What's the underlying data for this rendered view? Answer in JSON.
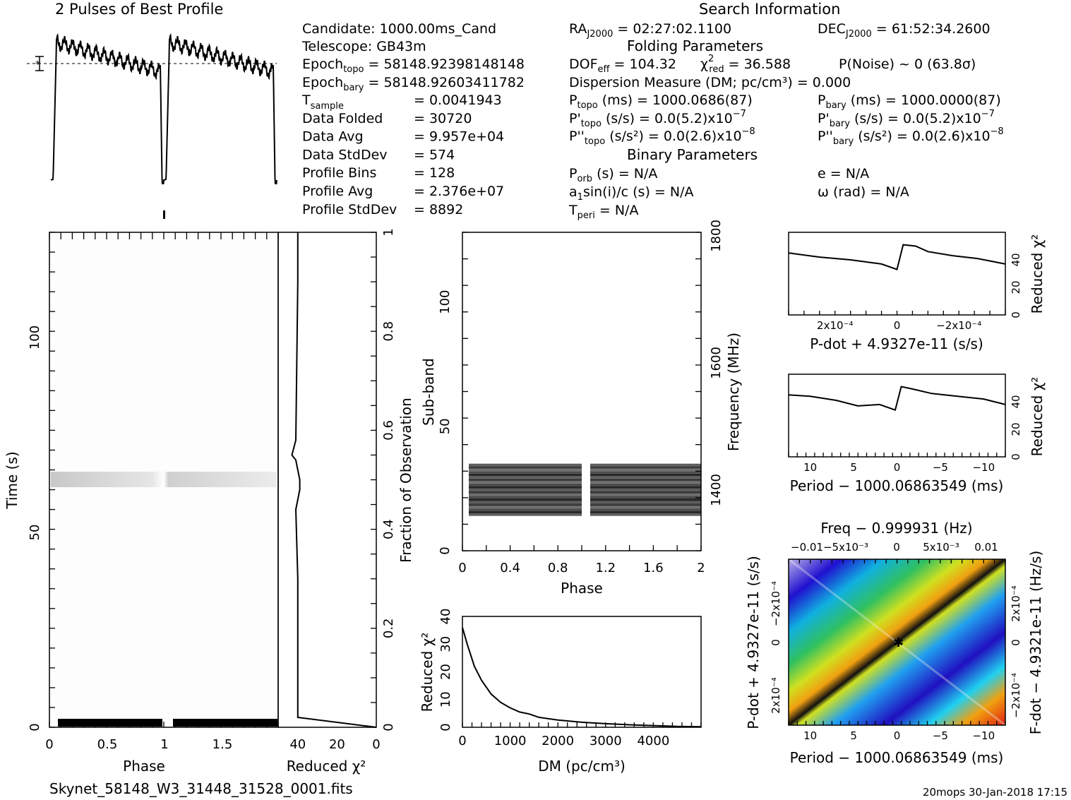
{
  "titles": {
    "profile": "2 Pulses of Best Profile",
    "search": "Search Information",
    "folding": "Folding Parameters",
    "binary": "Binary Parameters"
  },
  "candidate": {
    "candidate": "Candidate:  1000.00ms_Cand",
    "telescope": "Telescope:  GB43m",
    "epoch_topo_label": "Epoch",
    "epoch_topo_sub": "topo",
    "epoch_topo_val": " = 58148.92398148148",
    "epoch_bary_label": "Epoch",
    "epoch_bary_sub": "bary",
    "epoch_bary_val": " = 58148.92603411782",
    "rows": [
      {
        "label": "T",
        "sub": "sample",
        "value": "=   0.0041943"
      },
      {
        "label": "Data Folded",
        "sub": "",
        "value": "=   30720"
      },
      {
        "label": "Data Avg",
        "sub": "",
        "value": "=   9.957e+04"
      },
      {
        "label": "Data StdDev",
        "sub": "",
        "value": "=   574"
      },
      {
        "label": "Profile Bins",
        "sub": "",
        "value": "=   128"
      },
      {
        "label": "Profile Avg",
        "sub": "",
        "value": "=   2.376e+07"
      },
      {
        "label": "Profile StdDev",
        "sub": "",
        "value": "=   8892"
      }
    ]
  },
  "search": {
    "ra": {
      "label": "RA",
      "sub": "J2000",
      "value": " = 02:27:02.1100"
    },
    "dec": {
      "label": "DEC",
      "sub": "J2000",
      "value": " = 61:52:34.2600"
    },
    "dof": {
      "label": "DOF",
      "sub": "eff",
      "value": " = 104.32"
    },
    "chi": {
      "label": "χ",
      "sup": "2",
      "sub": "red",
      "value": " = 36.588"
    },
    "pnoise": "P(Noise) ~ 0    (63.8σ)",
    "dm": "Dispersion Measure (DM; pc/cm³) = 0.000",
    "ptopo": {
      "label": "P",
      "sub": "topo",
      "value": " (ms) =  1000.0686(87)"
    },
    "pbary": {
      "label": "P",
      "sub": "bary",
      "value": " (ms) =  1000.0000(87)"
    },
    "pdtopo": {
      "label": "P'",
      "sub": "topo",
      "value": " (s/s) = 0.0(5.2)x10",
      "exp": "−7"
    },
    "pdbary": {
      "label": "P'",
      "sub": "bary",
      "value": " (s/s) = 0.0(5.2)x10",
      "exp": "−7"
    },
    "pddtopo": {
      "label": "P''",
      "sub": "topo",
      "value": " (s/s²) = 0.0(2.6)x10",
      "exp": "−8"
    },
    "pddbary": {
      "label": "P''",
      "sub": "bary",
      "value": " (s/s²) = 0.0(2.6)x10",
      "exp": "−8"
    },
    "porb": {
      "label": "P",
      "sub": "orb",
      "value": " (s) = N/A"
    },
    "ecc": "e = N/A",
    "a1": {
      "label": "a",
      "sub": "1",
      "value": "sin(i)/c (s) = N/A"
    },
    "omega": "ω (rad) = N/A",
    "tperi": {
      "label": "T",
      "sub": "peri",
      "value": " = N/A"
    }
  },
  "footer": {
    "filename": "Skynet_58148_W3_31448_31528_0001.fits",
    "stamp": "20mops 30-Jan-2018 17:15"
  },
  "colors": {
    "ink": "#000000",
    "grid_lo": "#1a10c8",
    "grid_hi": "#d01000"
  },
  "chart_data": [
    {
      "type": "line",
      "name": "profile",
      "title": "2 Pulses of Best Profile",
      "x_range": [
        0,
        2
      ],
      "profile_shape": "two pulses with dip at phase 0 and 1"
    },
    {
      "type": "heatmap",
      "name": "time-phase",
      "xlabel": "Phase",
      "ylabel": "Time (s)",
      "x_range": [
        0,
        2
      ],
      "y_range": [
        0,
        125
      ],
      "xticks": [
        "0",
        "0.5",
        "1",
        "1.5"
      ],
      "yticks": [
        "0",
        "50",
        "100"
      ],
      "right_label": "Fraction of Observation",
      "right_ticks": [
        "0",
        "0.2",
        "0.4",
        "0.6",
        "0.8",
        "1"
      ],
      "dark_band_time": 63
    },
    {
      "type": "line",
      "name": "time-chi",
      "xlabel": "Reduced χ²",
      "x_range": [
        50,
        0
      ],
      "xticks": [
        "40",
        "20",
        "0"
      ],
      "points": [
        [
          0,
          0
        ],
        [
          40,
          0.02
        ],
        [
          40,
          0.3
        ],
        [
          41,
          0.44
        ],
        [
          39,
          0.48
        ],
        [
          39,
          0.5
        ],
        [
          40,
          0.52
        ],
        [
          41,
          0.54
        ],
        [
          43,
          0.55
        ],
        [
          41,
          0.58
        ],
        [
          40,
          0.9
        ],
        [
          40,
          1.0
        ]
      ]
    },
    {
      "type": "heatmap",
      "name": "subband-phase",
      "xlabel": "Phase",
      "ylabel": "Sub-band",
      "right_label": "Frequency (MHz)",
      "x_range": [
        0,
        2
      ],
      "y_range": [
        0,
        128
      ],
      "xticks": [
        "0",
        "0.4",
        "0.8",
        "1.2",
        "1.6",
        "2"
      ],
      "yticks": [
        "0",
        "50",
        "100"
      ],
      "right_ticks": [
        "1400",
        "1600",
        "1800"
      ],
      "band_rows": [
        14,
        35
      ],
      "gap_phase": [
        1.0,
        1.06
      ]
    },
    {
      "type": "line",
      "name": "dm-chi",
      "xlabel": "DM (pc/cm³)",
      "ylabel": "Reduced χ²",
      "x_range": [
        0,
        5000
      ],
      "y_range": [
        0,
        40
      ],
      "xticks": [
        "0",
        "1000",
        "2000",
        "3000",
        "4000"
      ],
      "yticks": [
        "0",
        "10",
        "20",
        "30",
        "40"
      ],
      "points": [
        [
          0,
          36
        ],
        [
          100,
          30
        ],
        [
          250,
          22
        ],
        [
          400,
          17
        ],
        [
          600,
          12
        ],
        [
          800,
          9
        ],
        [
          1000,
          7
        ],
        [
          1200,
          5.5
        ],
        [
          1400,
          4.8
        ],
        [
          1600,
          3.6
        ],
        [
          2000,
          2.6
        ],
        [
          2500,
          1.8
        ],
        [
          3000,
          1.3
        ],
        [
          3500,
          0.9
        ],
        [
          4000,
          0.6
        ],
        [
          4500,
          0.3
        ],
        [
          5000,
          0.2
        ]
      ]
    },
    {
      "type": "line",
      "name": "pdot-chi",
      "xlabel": "P-dot + 4.9327e-11 (s/s)",
      "ylabel": "Reduced χ²",
      "x_range": [
        0.00035,
        -0.00035
      ],
      "y_range": [
        0,
        60
      ],
      "xticks": [
        "2x10⁻⁴",
        "0",
        "−2x10⁻⁴"
      ],
      "yticks": [
        "0",
        "20",
        "40"
      ],
      "points": [
        [
          0.00035,
          45
        ],
        [
          0.00025,
          42
        ],
        [
          0.00015,
          40
        ],
        [
          5e-05,
          37
        ],
        [
          0.0,
          33
        ],
        [
          -2e-05,
          51
        ],
        [
          -6e-05,
          50
        ],
        [
          -0.0001,
          46
        ],
        [
          -0.00018,
          43
        ],
        [
          -0.00026,
          41
        ],
        [
          -0.00035,
          37
        ]
      ]
    },
    {
      "type": "line",
      "name": "period-chi",
      "xlabel": "Period − 1000.06863549 (ms)",
      "ylabel": "Reduced χ²",
      "x_range": [
        12.5,
        -12.5
      ],
      "y_range": [
        0,
        60
      ],
      "xticks": [
        "10",
        "5",
        "0",
        "−5",
        "−10"
      ],
      "yticks": [
        "0",
        "20",
        "40"
      ],
      "points": [
        [
          12.5,
          45
        ],
        [
          10,
          44
        ],
        [
          7,
          41
        ],
        [
          4.5,
          37
        ],
        [
          2,
          38
        ],
        [
          0.2,
          34
        ],
        [
          -0.5,
          51
        ],
        [
          -2,
          49
        ],
        [
          -4,
          46
        ],
        [
          -7,
          44
        ],
        [
          -10,
          42
        ],
        [
          -12.5,
          38
        ]
      ]
    },
    {
      "type": "heatmap",
      "name": "ppdot-plane",
      "title": "Freq − 0.999931 (Hz)",
      "xlabel": "Period − 1000.06863549 (ms)",
      "ylabel": "P-dot + 4.9327e-11 (s/s)",
      "right_label": "F-dot − 4.9321e-11 (Hz/s)",
      "top_ticks": [
        "−0.01",
        "−5x10⁻³",
        "0",
        "5x10⁻³",
        "0.01"
      ],
      "xticks": [
        "10",
        "5",
        "0",
        "−5",
        "−10"
      ],
      "yticks": [
        "−2x10⁻⁴",
        "0",
        "2x10⁻⁴"
      ],
      "right_ticks": [
        "2x10⁻⁴",
        "0",
        "−2x10⁻⁴"
      ]
    }
  ]
}
